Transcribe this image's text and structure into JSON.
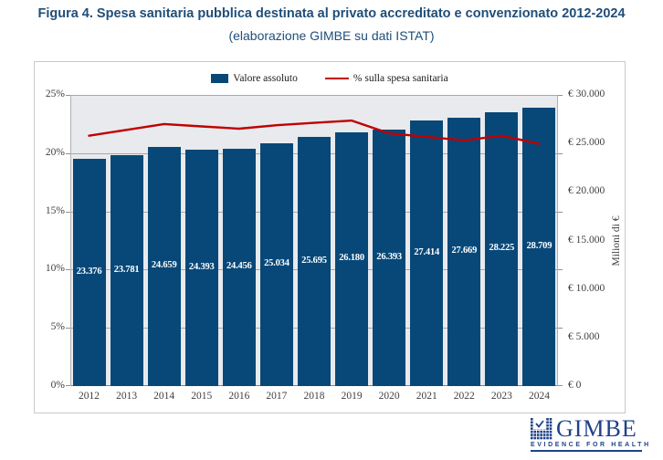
{
  "header": {
    "title": "Figura 4. Spesa sanitaria pubblica destinata al privato accreditato e convenzionato 2012-2024",
    "subtitle": "(elaborazione GIMBE su dati ISTAT)"
  },
  "legend": {
    "bar_label": "Valore assoluto",
    "line_label": "% sulla spesa sanitaria"
  },
  "chart_data": {
    "type": "bar+line",
    "categories": [
      "2012",
      "2013",
      "2014",
      "2015",
      "2016",
      "2017",
      "2018",
      "2019",
      "2020",
      "2021",
      "2022",
      "2023",
      "2024"
    ],
    "series": [
      {
        "name": "Valore assoluto",
        "type": "bar",
        "axis": "right",
        "unit": "Milioni di €",
        "values": [
          23376,
          23781,
          24659,
          24393,
          24456,
          25034,
          25695,
          26180,
          26393,
          27414,
          27669,
          28225,
          28709
        ],
        "labels": [
          "23.376",
          "23.781",
          "24.659",
          "24.393",
          "24.456",
          "25.034",
          "25.695",
          "26.180",
          "26.393",
          "27.414",
          "27.669",
          "28.225",
          "28.709"
        ]
      },
      {
        "name": "% sulla spesa sanitaria",
        "type": "line",
        "axis": "left",
        "unit": "%",
        "values": [
          21.5,
          22.0,
          22.5,
          22.3,
          22.1,
          22.4,
          22.6,
          22.8,
          21.7,
          21.4,
          21.1,
          21.5,
          20.8
        ]
      }
    ],
    "left_axis": {
      "range": [
        0,
        25
      ],
      "ticks": [
        0,
        5,
        10,
        15,
        20,
        25
      ],
      "tick_labels": [
        "0%",
        "5%",
        "10%",
        "15%",
        "20%",
        "25%"
      ]
    },
    "right_axis": {
      "range": [
        0,
        30000
      ],
      "tick_values": [
        0,
        5000,
        10000,
        15000,
        20000,
        25000,
        30000
      ],
      "tick_labels": [
        "€ 0",
        "€ 5.000",
        "€ 10.000",
        "€ 15.000",
        "€ 20.000",
        "€ 25.000",
        "€ 30.000"
      ],
      "title": "Milioni di €"
    },
    "legend_position": "top",
    "grid": true,
    "colors": {
      "bar": "#084879",
      "line": "#c00000",
      "plot_bg": "#e8eaed",
      "grid": "#a8a8a8",
      "axis": "#7f7f7f",
      "text": "#404040",
      "title_navy": "#1f4e79",
      "logo_navy": "#1e4289"
    }
  },
  "logo": {
    "wordmark": "GIMBE",
    "tagline": "EVIDENCE FOR HEALTH"
  }
}
